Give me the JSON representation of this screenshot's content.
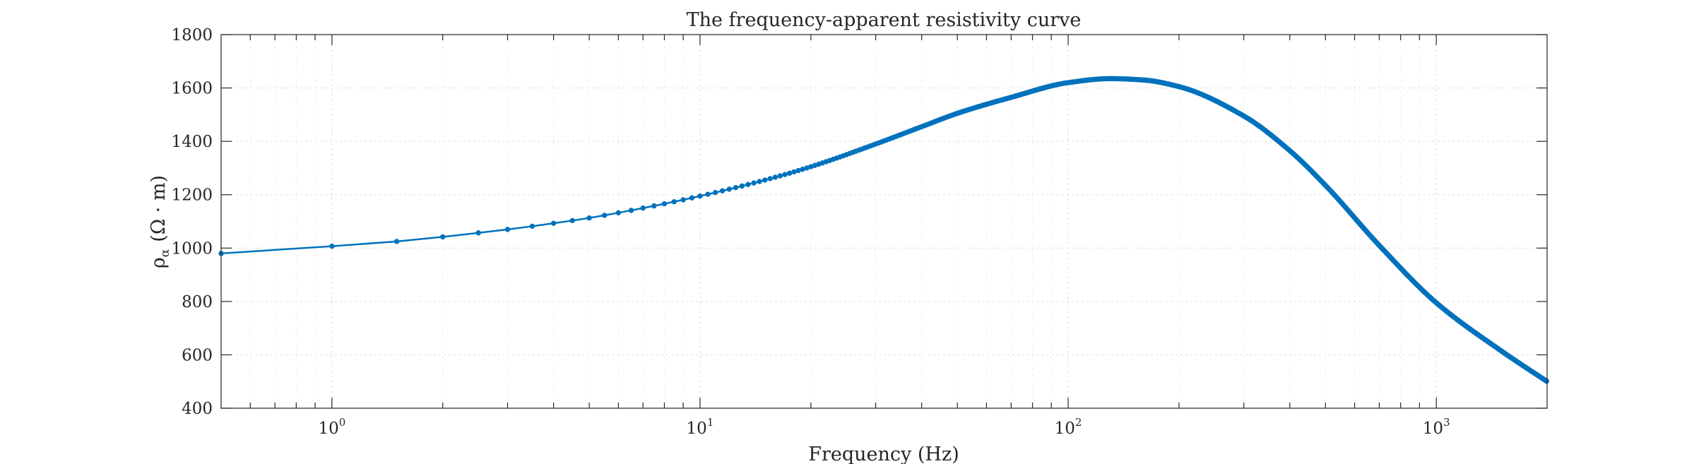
{
  "chart_data": {
    "type": "line",
    "title": "The frequency-apparent resistivity curve",
    "xlabel": "Frequency (Hz)",
    "ylabel_text": "(Ω · m)",
    "ylabel_symbol": "ρ",
    "ylabel_subscript": "α",
    "x_scale": "log",
    "xlim": [
      0.5,
      2000
    ],
    "ylim": [
      400,
      1800
    ],
    "x_tick_base": "10",
    "x_tick_exponents": [
      "0",
      "1",
      "2",
      "3"
    ],
    "y_ticks": [
      "400",
      "600",
      "800",
      "1000",
      "1200",
      "1400",
      "1600",
      "1800"
    ],
    "grid": true,
    "legend": "none",
    "series_color": "#0072BD",
    "marker": "dot",
    "sampling": "frequency step 0.5 Hz from 0.5 Hz to 2000 Hz",
    "control_points": {
      "x": [
        0.5,
        1,
        1.5,
        2,
        2.5,
        3,
        4,
        5,
        7,
        10,
        15,
        20,
        30,
        40,
        50,
        70,
        100,
        130,
        160,
        200,
        300,
        400,
        500,
        700,
        1000,
        1500,
        2000
      ],
      "y": [
        980,
        1007,
        1025,
        1042,
        1057,
        1070,
        1093,
        1113,
        1150,
        1195,
        1255,
        1305,
        1390,
        1455,
        1505,
        1565,
        1620,
        1635,
        1630,
        1605,
        1495,
        1365,
        1235,
        1010,
        795,
        615,
        500
      ]
    }
  }
}
